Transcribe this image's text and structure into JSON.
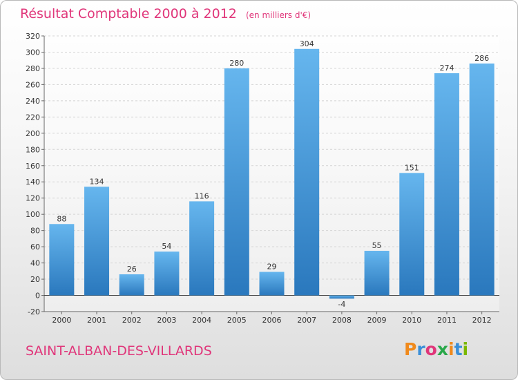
{
  "header": {
    "title": "Résultat Comptable 2000 à 2012",
    "unit_note": "(en milliers d'€)"
  },
  "footer": {
    "place": "SAINT-ALBAN-DES-VILLARDS",
    "logo_text": "Proxiti",
    "logo_colors": [
      "#f08a1c",
      "#3a8fd8",
      "#e0367a",
      "#2aa84a",
      "#f08a1c",
      "#3a8fd8",
      "#7ab800"
    ]
  },
  "colors": {
    "bar": "#3f96d8",
    "bar_light": "#66b6ee",
    "bar_dark": "#2a78bd",
    "accent": "#e0367a",
    "grid": "#d4d4d4"
  },
  "chart_data": {
    "type": "bar",
    "categories": [
      "2000",
      "2001",
      "2002",
      "2003",
      "2004",
      "2005",
      "2006",
      "2007",
      "2008",
      "2009",
      "2010",
      "2011",
      "2012"
    ],
    "values": [
      88,
      134,
      26,
      54,
      116,
      280,
      29,
      304,
      -4,
      55,
      151,
      274,
      286
    ],
    "value_labels": [
      "88",
      "134",
      "26",
      "54",
      "116",
      "280",
      "29",
      "304",
      "-4",
      "55",
      "151",
      "274",
      "286"
    ],
    "ylim": [
      -20,
      320
    ],
    "yticks": [
      -20,
      0,
      20,
      40,
      60,
      80,
      100,
      120,
      140,
      160,
      180,
      200,
      220,
      240,
      260,
      280,
      300,
      320
    ],
    "xlabel": "",
    "ylabel": "",
    "grid": true
  }
}
